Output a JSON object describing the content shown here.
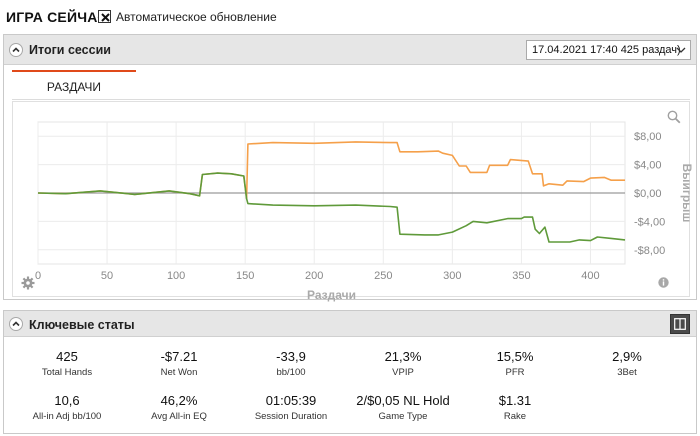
{
  "top": {
    "title": "ИГРА СЕЙЧАС",
    "auto_update_label": "Автоматическое обновление",
    "auto_update_checked": true
  },
  "session_panel": {
    "title": "Итоги сессии",
    "session_select_value": "17.04.2021 17:40 425 раздач)",
    "tab_label": "РАЗДАЧИ"
  },
  "chart_data": {
    "type": "line",
    "xlabel": "Раздачи",
    "ylabel": "Выигрыш",
    "xlim": [
      0,
      425
    ],
    "ylim": [
      -10,
      10
    ],
    "x_ticks": [
      "0",
      "50",
      "100",
      "150",
      "200",
      "250",
      "300",
      "350",
      "400"
    ],
    "y_ticks": [
      "$8,00",
      "$4,00",
      "$0,00",
      "-$4,00",
      "-$8,00"
    ],
    "grid": true,
    "colors": {
      "orange": "#f5a04a",
      "green": "#5f9a3a",
      "zero": "#9a9a9a"
    },
    "series": [
      {
        "color": "orange",
        "points": [
          [
            0,
            0.0
          ],
          [
            20,
            -0.1
          ],
          [
            45,
            0.3
          ],
          [
            70,
            -0.2
          ],
          [
            95,
            0.3
          ],
          [
            110,
            -0.1
          ],
          [
            117,
            -0.4
          ],
          [
            119,
            2.6
          ],
          [
            130,
            2.8
          ],
          [
            140,
            2.7
          ],
          [
            149,
            2.4
          ],
          [
            151,
            -0.8
          ],
          [
            152,
            6.9
          ],
          [
            170,
            7.1
          ],
          [
            200,
            7.0
          ],
          [
            230,
            7.2
          ],
          [
            255,
            7.1
          ],
          [
            260,
            7.1
          ],
          [
            262,
            5.8
          ],
          [
            275,
            5.8
          ],
          [
            290,
            5.9
          ],
          [
            293,
            5.6
          ],
          [
            300,
            5.3
          ],
          [
            305,
            3.8
          ],
          [
            310,
            3.8
          ],
          [
            313,
            2.9
          ],
          [
            325,
            2.9
          ],
          [
            327,
            3.9
          ],
          [
            340,
            3.9
          ],
          [
            342,
            4.7
          ],
          [
            355,
            4.5
          ],
          [
            358,
            2.7
          ],
          [
            365,
            2.7
          ],
          [
            366,
            1.0
          ],
          [
            370,
            1.3
          ],
          [
            380,
            1.1
          ],
          [
            383,
            1.7
          ],
          [
            395,
            1.6
          ],
          [
            400,
            2.1
          ],
          [
            410,
            2.2
          ],
          [
            415,
            1.8
          ],
          [
            425,
            1.8
          ]
        ]
      },
      {
        "color": "green",
        "points": [
          [
            0,
            0.0
          ],
          [
            20,
            -0.1
          ],
          [
            45,
            0.3
          ],
          [
            70,
            -0.2
          ],
          [
            95,
            0.3
          ],
          [
            110,
            -0.1
          ],
          [
            117,
            -0.4
          ],
          [
            119,
            2.6
          ],
          [
            130,
            2.8
          ],
          [
            140,
            2.7
          ],
          [
            149,
            2.4
          ],
          [
            151,
            -0.8
          ],
          [
            152,
            -1.5
          ],
          [
            170,
            -1.7
          ],
          [
            200,
            -1.8
          ],
          [
            230,
            -1.7
          ],
          [
            255,
            -1.9
          ],
          [
            260,
            -2.0
          ],
          [
            262,
            -5.8
          ],
          [
            280,
            -5.9
          ],
          [
            290,
            -5.9
          ],
          [
            300,
            -5.5
          ],
          [
            310,
            -4.6
          ],
          [
            315,
            -4.0
          ],
          [
            325,
            -4.2
          ],
          [
            340,
            -3.6
          ],
          [
            350,
            -3.6
          ],
          [
            352,
            -3.4
          ],
          [
            358,
            -3.4
          ],
          [
            360,
            -5.1
          ],
          [
            363,
            -5.7
          ],
          [
            367,
            -4.8
          ],
          [
            370,
            -6.9
          ],
          [
            385,
            -6.9
          ],
          [
            392,
            -6.6
          ],
          [
            400,
            -6.7
          ],
          [
            405,
            -6.2
          ],
          [
            415,
            -6.4
          ],
          [
            425,
            -6.6
          ]
        ]
      }
    ]
  },
  "stats_panel": {
    "title": "Ключевые статы",
    "stats": [
      {
        "value": "425",
        "label": "Total Hands"
      },
      {
        "value": "-$7.21",
        "label": "Net Won"
      },
      {
        "value": "-33,9",
        "label": "bb/100"
      },
      {
        "value": "21,3%",
        "label": "VPIP"
      },
      {
        "value": "15,5%",
        "label": "PFR"
      },
      {
        "value": "2,9%",
        "label": "3Bet"
      },
      {
        "value": "10,6",
        "label": "All-in Adj bb/100"
      },
      {
        "value": "46,2%",
        "label": "Avg All-in EQ"
      },
      {
        "value": "01:05:39",
        "label": "Session Duration"
      },
      {
        "value": "2/$0,05 NL Hold",
        "label": "Game Type"
      },
      {
        "value": "$1.31",
        "label": "Rake"
      }
    ]
  }
}
